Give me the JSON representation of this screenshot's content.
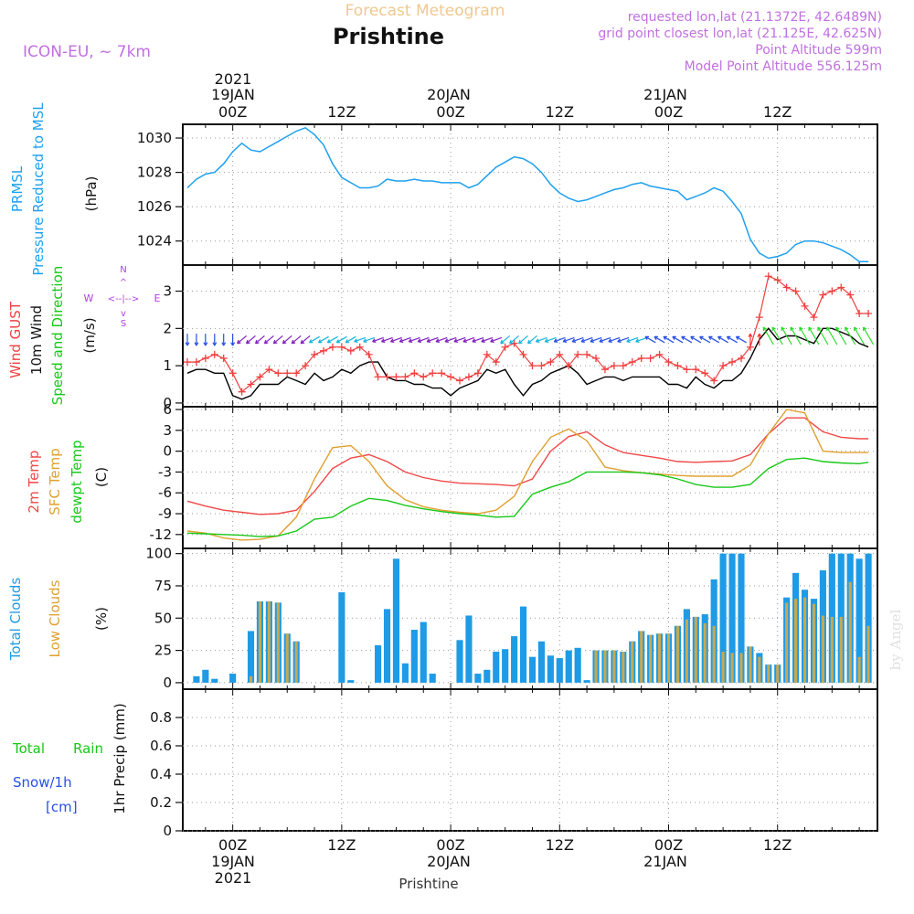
{
  "header": {
    "title_top": "Forecast Meteogram",
    "location": "Prishtine",
    "model": "ICON-EU, ~ 7km",
    "requested": "requested lon,lat (21.1372E, 42.6489N)",
    "grid_point": "grid point closest lon,lat (21.125E, 42.625N)",
    "point_altitude": "Point Altitude 599m",
    "model_altitude": "Model Point Altitude 556.125m"
  },
  "footer": {
    "location": "Prishtine",
    "credit": "by Angel"
  },
  "time_axis": {
    "top_year": "2021",
    "day_labels": [
      "19JAN",
      "20JAN",
      "21JAN"
    ],
    "tick_labels": [
      "00Z",
      "12Z",
      "00Z",
      "12Z",
      "00Z",
      "12Z"
    ],
    "tick_hours": [
      0,
      12,
      24,
      36,
      48,
      60
    ],
    "x_range_hours": [
      -5.5,
      71
    ]
  },
  "panels": {
    "pressure": {
      "label_left": "PRMSL",
      "label_left2": "Pressure Reduced to MSL",
      "unit": "(hPa)",
      "ticks": [
        1024,
        1026,
        1028,
        1030
      ],
      "ylim": [
        1022.6,
        1030.8
      ]
    },
    "wind": {
      "label_gust": "Wind GUST",
      "label_wind": "10m Wind",
      "label_dir": "Speed and Direction",
      "unit": "(m/s)",
      "compass_n": "N",
      "compass_s": "S",
      "compass_w": "W",
      "compass_e": "E",
      "compass_mid": "<--|-->",
      "ticks": [
        0,
        1,
        2,
        3
      ],
      "ylim": [
        -0.1,
        3.7
      ]
    },
    "temp": {
      "label_t2m": "2m Temp",
      "label_sfc": "SFC Temp",
      "label_dew": "dewpt Temp",
      "unit": "(C)",
      "ticks": [
        -12,
        -9,
        -6,
        -3,
        0,
        3,
        6
      ],
      "ylim": [
        -14,
        6.4
      ]
    },
    "clouds": {
      "label_total": "Total Clouds",
      "label_low": "Low Clouds",
      "unit": "(%)",
      "ticks": [
        0,
        25,
        50,
        75,
        100
      ],
      "ylim": [
        -5,
        104
      ]
    },
    "precip": {
      "label_total": "Total",
      "label_rain": "Rain",
      "label_snow": "Snow/1h",
      "label_cm": "[cm]",
      "unit": "1hr Precip (mm)",
      "ticks": [
        0,
        0.2,
        0.4,
        0.6,
        0.8
      ],
      "tick_labels": [
        "0",
        "0.2",
        "0.4",
        "0.6",
        "0.8"
      ],
      "ylim": [
        0,
        1.0
      ]
    }
  },
  "colors": {
    "pressure": "#1ea0f0",
    "gust": "#f04040",
    "wind": "#000000",
    "arrow_blue": "#2850e6",
    "arrow_purple": "#8020c0",
    "arrow_cyan": "#18b4dc",
    "arrow_green": "#28dc28",
    "t2m": "#f04848",
    "sfc": "#e0a030",
    "dew": "#18c818",
    "cloud_total": "#1e9be6",
    "cloud_low": "#c8a850",
    "purple_text": "#c070e0",
    "title_orange": "#f0c890",
    "compass": "#b040e0"
  },
  "chart_data": [
    {
      "type": "line",
      "title": "PRMSL Pressure Reduced to MSL",
      "ylabel": "(hPa)",
      "x_unit": "hours from 2021-01-19 00Z",
      "series": [
        {
          "name": "PRMSL",
          "x": [
            -5,
            -4,
            -3,
            -2,
            -1,
            0,
            1,
            2,
            3,
            4,
            5,
            6,
            7,
            8,
            9,
            10,
            11,
            12,
            13,
            14,
            15,
            16,
            17,
            18,
            19,
            20,
            21,
            22,
            23,
            24,
            25,
            26,
            27,
            28,
            29,
            30,
            31,
            32,
            33,
            34,
            35,
            36,
            37,
            38,
            39,
            40,
            41,
            42,
            43,
            44,
            45,
            46,
            47,
            48,
            49,
            50,
            51,
            52,
            53,
            54,
            55,
            56,
            57,
            58,
            59,
            60,
            61,
            62,
            63,
            64,
            65,
            66,
            67,
            68,
            69,
            70
          ],
          "values": [
            1027.1,
            1027.6,
            1027.9,
            1028.0,
            1028.5,
            1029.2,
            1029.7,
            1029.3,
            1029.2,
            1029.5,
            1029.8,
            1030.1,
            1030.4,
            1030.6,
            1030.2,
            1029.6,
            1028.5,
            1027.7,
            1027.4,
            1027.1,
            1027.1,
            1027.2,
            1027.6,
            1027.5,
            1027.5,
            1027.6,
            1027.5,
            1027.5,
            1027.4,
            1027.4,
            1027.4,
            1027.1,
            1027.3,
            1027.8,
            1028.3,
            1028.6,
            1028.9,
            1028.8,
            1028.5,
            1028.0,
            1027.3,
            1026.8,
            1026.5,
            1026.3,
            1026.4,
            1026.6,
            1026.8,
            1027.0,
            1027.1,
            1027.3,
            1027.4,
            1027.2,
            1027.1,
            1027.0,
            1026.9,
            1026.4,
            1026.6,
            1026.8,
            1027.1,
            1026.9,
            1026.3,
            1025.6,
            1024.1,
            1023.3,
            1023.0,
            1023.1,
            1023.3,
            1023.8,
            1024.0,
            1024.0,
            1023.9,
            1023.7,
            1023.5,
            1023.2,
            1022.8,
            1022.8
          ]
        }
      ]
    },
    {
      "type": "line",
      "title": "Wind GUST / 10m Wind Speed and Direction",
      "ylabel": "(m/s)",
      "x_unit": "hours from 2021-01-19 00Z",
      "series": [
        {
          "name": "Wind GUST",
          "x": [
            -5,
            -4,
            -3,
            -2,
            -1,
            0,
            1,
            2,
            3,
            4,
            5,
            6,
            7,
            8,
            9,
            10,
            11,
            12,
            13,
            14,
            15,
            16,
            17,
            18,
            19,
            20,
            21,
            22,
            23,
            24,
            25,
            26,
            27,
            28,
            29,
            30,
            31,
            32,
            33,
            34,
            35,
            36,
            37,
            38,
            39,
            40,
            41,
            42,
            43,
            44,
            45,
            46,
            47,
            48,
            49,
            50,
            51,
            52,
            53,
            54,
            55,
            56,
            57,
            58,
            59,
            60,
            61,
            62,
            63,
            64,
            65,
            66,
            67,
            68,
            69,
            70
          ],
          "values": [
            1.1,
            1.1,
            1.2,
            1.3,
            1.2,
            0.8,
            0.3,
            0.5,
            0.7,
            0.9,
            0.8,
            0.8,
            0.8,
            1.0,
            1.3,
            1.4,
            1.5,
            1.5,
            1.4,
            1.5,
            1.3,
            0.7,
            0.7,
            0.7,
            0.7,
            0.8,
            0.7,
            0.8,
            0.8,
            0.7,
            0.6,
            0.7,
            0.8,
            1.3,
            1.1,
            1.5,
            1.6,
            1.3,
            1.0,
            1.0,
            1.1,
            1.3,
            1.0,
            1.3,
            1.3,
            1.2,
            0.9,
            1.0,
            1.0,
            1.1,
            1.2,
            1.2,
            1.3,
            1.1,
            1.0,
            0.9,
            0.9,
            0.8,
            0.6,
            1.0,
            1.1,
            1.2,
            1.5,
            2.3,
            3.4,
            3.3,
            3.1,
            3.0,
            2.6,
            2.3,
            2.9,
            3.0,
            3.1,
            2.9,
            2.4,
            2.4
          ]
        },
        {
          "name": "10m Wind",
          "x": [
            -5,
            -4,
            -3,
            -2,
            -1,
            0,
            1,
            2,
            3,
            4,
            5,
            6,
            7,
            8,
            9,
            10,
            11,
            12,
            13,
            14,
            15,
            16,
            17,
            18,
            19,
            20,
            21,
            22,
            23,
            24,
            25,
            26,
            27,
            28,
            29,
            30,
            31,
            32,
            33,
            34,
            35,
            36,
            37,
            38,
            39,
            40,
            41,
            42,
            43,
            44,
            45,
            46,
            47,
            48,
            49,
            50,
            51,
            52,
            53,
            54,
            55,
            56,
            57,
            58,
            59,
            60,
            61,
            62,
            63,
            64,
            65,
            66,
            67,
            68,
            69,
            70
          ],
          "values": [
            0.8,
            0.9,
            0.9,
            0.8,
            0.8,
            0.2,
            0.1,
            0.2,
            0.5,
            0.5,
            0.5,
            0.7,
            0.6,
            0.5,
            0.8,
            0.6,
            0.7,
            0.9,
            0.8,
            1.0,
            1.1,
            1.1,
            0.7,
            0.6,
            0.6,
            0.5,
            0.5,
            0.4,
            0.4,
            0.2,
            0.4,
            0.5,
            0.6,
            0.9,
            0.8,
            0.9,
            0.5,
            0.2,
            0.5,
            0.6,
            0.8,
            0.9,
            1.0,
            0.8,
            0.5,
            0.6,
            0.7,
            0.7,
            0.6,
            0.7,
            0.7,
            0.7,
            0.7,
            0.5,
            0.5,
            0.4,
            0.7,
            0.5,
            0.4,
            0.6,
            0.6,
            0.8,
            1.2,
            1.7,
            2.0,
            1.7,
            1.8,
            1.8,
            1.7,
            1.6,
            2.0,
            2.0,
            1.9,
            1.8,
            1.6,
            1.5
          ]
        }
      ]
    },
    {
      "type": "line",
      "title": "2m Temp / SFC Temp / dewpt Temp",
      "ylabel": "(C)",
      "x_unit": "hours from 2021-01-19 00Z",
      "series": [
        {
          "name": "2m Temp",
          "x": [
            -5,
            -3,
            -1,
            1,
            3,
            5,
            7,
            9,
            11,
            13,
            15,
            17,
            19,
            21,
            23,
            25,
            27,
            29,
            31,
            33,
            35,
            37,
            39,
            41,
            43,
            45,
            47,
            49,
            51,
            53,
            55,
            57,
            59,
            61,
            63,
            65,
            67,
            69,
            70
          ],
          "values": [
            -7.2,
            -7.9,
            -8.5,
            -8.8,
            -9.1,
            -9.0,
            -8.5,
            -5.8,
            -2.5,
            -1.0,
            -0.5,
            -1.5,
            -3.0,
            -3.8,
            -4.3,
            -4.6,
            -4.7,
            -4.8,
            -5.0,
            -4.0,
            0.0,
            2.1,
            2.8,
            0.9,
            -0.2,
            -0.6,
            -1.0,
            -1.5,
            -1.6,
            -1.5,
            -1.4,
            -0.5,
            2.5,
            4.8,
            4.8,
            2.8,
            2.0,
            1.8,
            1.8
          ]
        },
        {
          "name": "SFC Temp",
          "x": [
            -5,
            -3,
            -1,
            1,
            3,
            5,
            7,
            9,
            11,
            13,
            15,
            17,
            19,
            21,
            23,
            25,
            27,
            29,
            31,
            33,
            35,
            37,
            39,
            41,
            43,
            45,
            47,
            49,
            51,
            53,
            55,
            57,
            59,
            61,
            63,
            65,
            67,
            69,
            70
          ],
          "values": [
            -11.5,
            -11.8,
            -12.5,
            -12.8,
            -12.7,
            -12.2,
            -9.5,
            -4.0,
            0.5,
            0.8,
            -1.5,
            -5.0,
            -7.0,
            -8.0,
            -8.5,
            -8.8,
            -9.0,
            -8.5,
            -6.5,
            -1.5,
            2.0,
            3.2,
            1.5,
            -2.3,
            -2.8,
            -3.1,
            -3.3,
            -3.5,
            -3.6,
            -3.6,
            -3.6,
            -2.0,
            2.5,
            6.0,
            5.5,
            0.0,
            -0.2,
            -0.2,
            -0.2
          ]
        },
        {
          "name": "dewpt Temp",
          "x": [
            -5,
            -3,
            -1,
            1,
            3,
            5,
            7,
            9,
            11,
            13,
            15,
            17,
            19,
            21,
            23,
            25,
            27,
            29,
            31,
            33,
            35,
            37,
            39,
            41,
            43,
            45,
            47,
            49,
            51,
            53,
            55,
            57,
            59,
            61,
            63,
            65,
            67,
            69,
            70
          ],
          "values": [
            -11.8,
            -11.9,
            -12.0,
            -12.1,
            -12.3,
            -12.2,
            -11.5,
            -9.8,
            -9.5,
            -7.9,
            -6.8,
            -7.1,
            -7.8,
            -8.3,
            -8.7,
            -9.0,
            -9.2,
            -9.5,
            -9.4,
            -6.2,
            -5.2,
            -4.4,
            -3.0,
            -3.0,
            -3.0,
            -3.1,
            -3.4,
            -4.0,
            -4.8,
            -5.2,
            -5.2,
            -4.8,
            -2.5,
            -1.2,
            -1.0,
            -1.5,
            -1.7,
            -1.8,
            -1.6
          ]
        }
      ]
    },
    {
      "type": "bar",
      "title": "Total Clouds / Low Clouds",
      "ylabel": "(%)",
      "x_unit": "hours from 2021-01-19 00Z",
      "x": [
        -5,
        -4,
        -3,
        -2,
        -1,
        0,
        1,
        2,
        3,
        4,
        5,
        6,
        7,
        8,
        9,
        10,
        11,
        12,
        13,
        14,
        15,
        16,
        17,
        18,
        19,
        20,
        21,
        22,
        23,
        24,
        25,
        26,
        27,
        28,
        29,
        30,
        31,
        32,
        33,
        34,
        35,
        36,
        37,
        38,
        39,
        40,
        41,
        42,
        43,
        44,
        45,
        46,
        47,
        48,
        49,
        50,
        51,
        52,
        53,
        54,
        55,
        56,
        57,
        58,
        59,
        60,
        61,
        62,
        63,
        64,
        65,
        66,
        67,
        68,
        69,
        70
      ],
      "series": [
        {
          "name": "Total Clouds",
          "values": [
            0,
            5,
            10,
            3,
            0,
            7,
            0,
            40,
            63,
            63,
            62,
            38,
            32,
            0,
            0,
            0,
            0,
            70,
            2,
            0,
            0,
            29,
            57,
            96,
            15,
            41,
            47,
            7,
            0,
            0,
            33,
            52,
            7,
            10,
            24,
            26,
            36,
            59,
            20,
            32,
            21,
            19,
            25,
            27,
            2,
            25,
            25,
            25,
            24,
            32,
            40,
            37,
            38,
            38,
            44,
            57,
            51,
            53,
            80,
            100,
            100,
            100,
            28,
            23,
            14,
            14,
            66,
            85,
            72,
            65,
            87,
            100,
            100,
            100,
            96,
            100
          ],
          "low_values": [
            0,
            0,
            0,
            0,
            0,
            0,
            0,
            5,
            63,
            63,
            62,
            38,
            32,
            0,
            0,
            0,
            0,
            0,
            0,
            0,
            0,
            0,
            0,
            0,
            0,
            0,
            0,
            0,
            0,
            0,
            0,
            0,
            0,
            0,
            0,
            0,
            0,
            0,
            0,
            0,
            0,
            0,
            0,
            0,
            0,
            25,
            25,
            25,
            24,
            32,
            40,
            37,
            38,
            38,
            44,
            49,
            51,
            46,
            44,
            24,
            23,
            23,
            28,
            20,
            14,
            14,
            62,
            65,
            66,
            61,
            52,
            51,
            51,
            78,
            20,
            44
          ]
        }
      ]
    },
    {
      "type": "bar",
      "title": "Total Rain / Snow/1h",
      "ylabel": "1hr Precip (mm)",
      "x_unit": "hours from 2021-01-19 00Z",
      "series": [
        {
          "name": "Total Rain",
          "values": []
        },
        {
          "name": "Snow/1h [cm]",
          "values": []
        }
      ]
    }
  ]
}
